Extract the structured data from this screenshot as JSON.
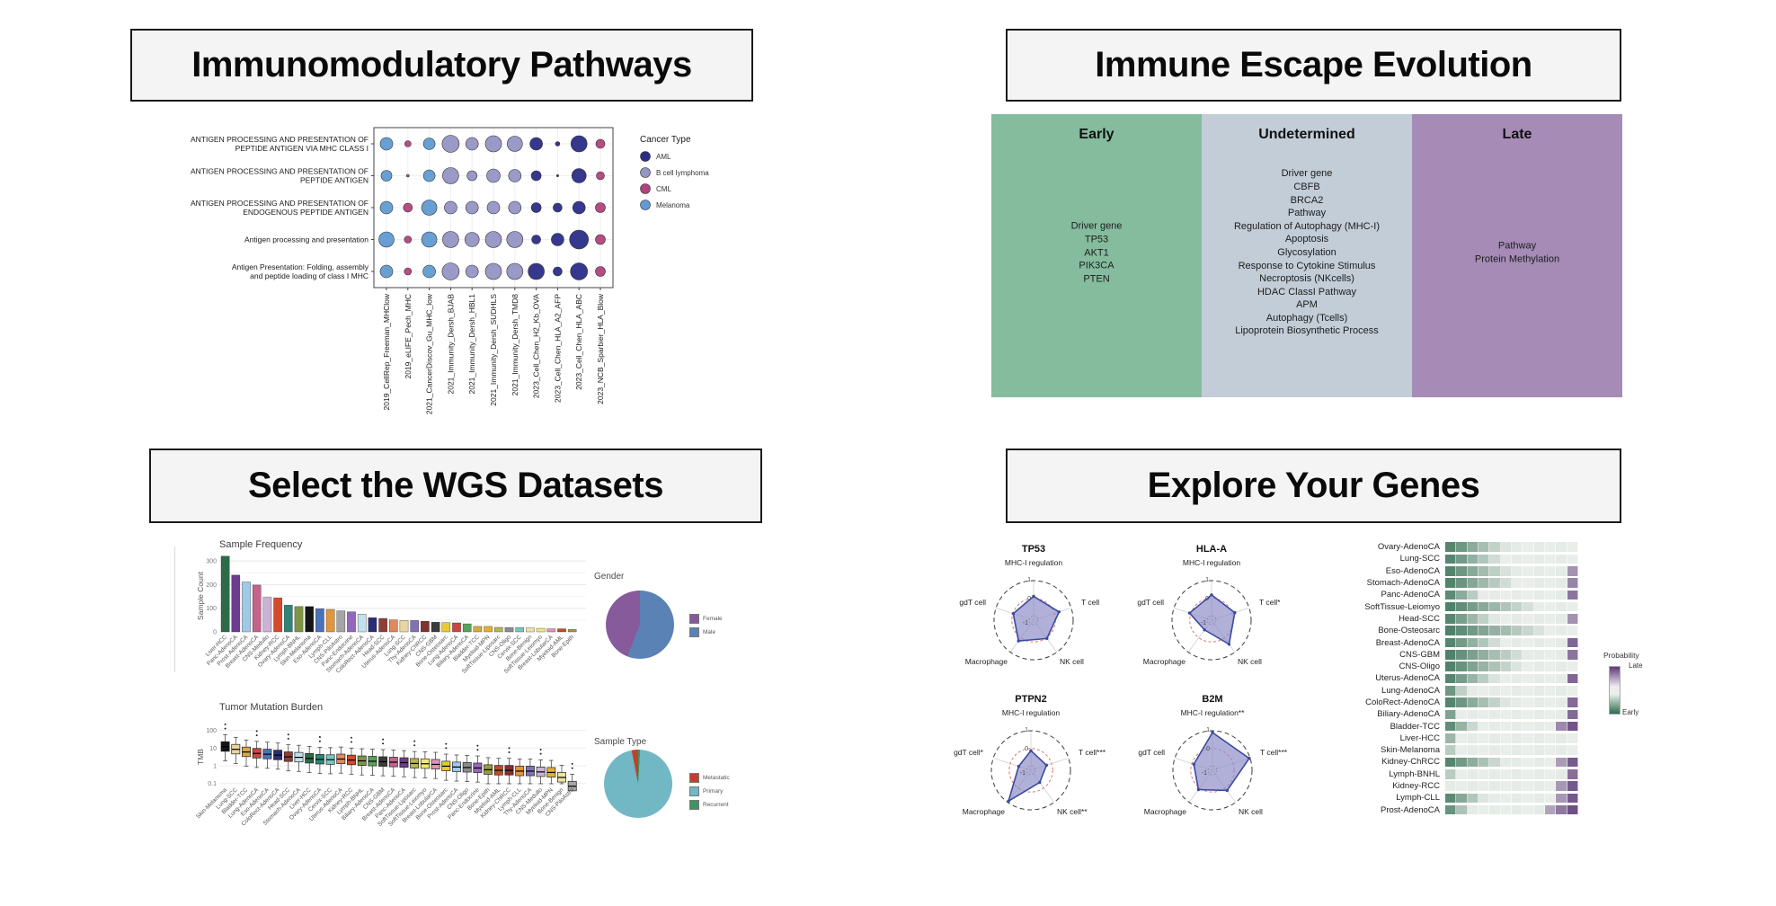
{
  "panels": {
    "immunomodulatory": {
      "title": "Immunomodulatory Pathways"
    },
    "immune_escape": {
      "title": "Immune Escape Evolution"
    },
    "wgs": {
      "title": "Select the WGS Datasets"
    },
    "explore": {
      "title": "Explore Your Genes"
    }
  },
  "immune_escape_columns": [
    {
      "label": "Early",
      "color": "#85bc9e",
      "items": [
        "Driver gene",
        "TP53",
        "AKT1",
        "PIK3CA",
        "PTEN"
      ]
    },
    {
      "label": "Undetermined",
      "color": "#c2cdd8",
      "items": [
        "Driver gene",
        "CBFB",
        "BRCA2",
        "Pathway",
        "Regulation of Autophagy (MHC-I)",
        "Apoptosis",
        "Glycosylation",
        "Response to Cytokine Stimulus",
        "Necroptosis (NKcells)",
        "HDAC ClassI Pathway",
        "APM",
        "Autophagy (Tcells)",
        "Lipoprotein Biosynthetic Process"
      ]
    },
    {
      "label": "Late",
      "color": "#a68bb7",
      "items": [
        "Pathway",
        "Protein Methylation"
      ]
    }
  ],
  "chart_data": [
    {
      "id": "pathway_dotplot",
      "type": "scatter",
      "rows": [
        [
          "ANTIGEN PROCESSING AND PRESENTATION OF",
          "PEPTIDE ANTIGEN VIA MHC CLASS I"
        ],
        [
          "ANTIGEN PROCESSING AND PRESENTATION OF",
          "PEPTIDE ANTIGEN"
        ],
        [
          "ANTIGEN PROCESSING AND PRESENTATION OF",
          "ENDOGENOUS PEPTIDE ANTIGEN"
        ],
        [
          "Antigen processing and presentation"
        ],
        [
          "Antigen Presentation: Folding, assembly",
          "and peptide loading of class I MHC"
        ]
      ],
      "columns": [
        "2019_CellRep_Freeman_MHClow",
        "2019_eLIFE_Pech_MHC",
        "2021_CancerDiscov_Gu_MHC_low",
        "2021_Immunity_Dersh_BJAB",
        "2021_Immunity_Dersh_HBL1",
        "2021_Immunity_Dersh_SUDHLS",
        "2021_Immunity_Dersh_TMD8",
        "2023_Cell_Chen_H2_Kb_OVA",
        "2023_Cell_Chen_HLA_A2_AFP",
        "2023_Cell_Chen_HLA_ABC",
        "2023_NCB_Sparbier_HLA_Blow"
      ],
      "column_cancer_type": [
        "Melanoma",
        "CML",
        "Melanoma",
        "B cell lymphoma",
        "B cell lymphoma",
        "B cell lymphoma",
        "B cell lymphoma",
        "AML",
        "AML",
        "AML",
        "CML"
      ],
      "dot_sizes": [
        [
          7,
          3.5,
          6.5,
          9.5,
          7,
          9,
          8.5,
          7,
          2.5,
          9,
          5
        ],
        [
          6,
          1.5,
          6.5,
          9,
          5.5,
          7.5,
          7,
          5.5,
          1.2,
          8,
          4.5
        ],
        [
          7,
          5,
          8.5,
          7,
          7,
          7,
          7,
          5.5,
          5,
          7,
          5.5
        ],
        [
          8.5,
          4,
          8.5,
          9,
          8,
          9,
          9,
          5,
          7,
          10.5,
          5.5
        ],
        [
          7,
          4,
          7,
          9.5,
          7,
          9,
          9,
          9,
          5,
          9.5,
          5.5
        ]
      ],
      "legend": {
        "title": "Cancer Type",
        "entries": [
          {
            "label": "AML",
            "color": "#2a2d87"
          },
          {
            "label": "B cell lymphoma",
            "color": "#9693c5"
          },
          {
            "label": "CML",
            "color": "#b2437b"
          },
          {
            "label": "Melanoma",
            "color": "#609bd2"
          }
        ]
      }
    },
    {
      "id": "sample_frequency",
      "type": "bar",
      "title": "Sample Frequency",
      "ylabel": "Sample Count",
      "yticks": [
        0,
        100,
        200,
        300
      ],
      "ylim": [
        0,
        330
      ],
      "categories": [
        "Liver-HCC",
        "Panc-AdenoCA",
        "Prost-AdenoCA",
        "Breast-AdenoCA",
        "CNS-Medullo",
        "Kidney-RCC",
        "Ovary-AdenoCA",
        "Lymph-BNHL",
        "Skin-Melanoma",
        "Eso-AdenoCA",
        "Lymph-CLL",
        "CNS-PiloAstro",
        "Panc-Endocrine",
        "Stomach-AdenoCA",
        "ColoRect-AdenoCA",
        "Head-SCC",
        "Uterus-AdenoCA",
        "Lung-SCC",
        "Thy-AdenoCA",
        "Kidney-ChRCC",
        "CNS-GBM",
        "Bone-Osteosarc",
        "Lung-AdenoCA",
        "Biliary-AdenoCA",
        "Bladder-TCC",
        "Myeloid-MPN",
        "SoftTissue-Liposarc",
        "CNS-Oligo",
        "Cervix-SCC",
        "Bone-Benign",
        "SoftTissue-Leiomyo",
        "Breast-LobularCA",
        "Myeloid-AML",
        "Bone-Epith"
      ],
      "values": [
        320,
        240,
        211,
        198,
        146,
        144,
        113,
        107,
        107,
        98,
        95,
        89,
        85,
        75,
        60,
        57,
        51,
        48,
        48,
        45,
        41,
        39,
        38,
        34,
        23,
        23,
        19,
        18,
        18,
        16,
        15,
        13,
        13,
        10
      ],
      "colors": [
        "#2c6b46",
        "#6a3d8f",
        "#9ecae9",
        "#c4638c",
        "#cbb2d6",
        "#d6492c",
        "#2e8577",
        "#7d9545",
        "#141414",
        "#4a72b8",
        "#e2953d",
        "#a5a5a5",
        "#9467bd",
        "#c3e1ec",
        "#2b2d75",
        "#8f3f36",
        "#e0895e",
        "#ead5a0",
        "#8072b5",
        "#823030",
        "#3b3b3b",
        "#e8c92f",
        "#cc4545",
        "#59a257",
        "#d8a843",
        "#e3b130",
        "#b8b457",
        "#8c8c8c",
        "#76c7c0",
        "#efe3a2",
        "#f2e87e",
        "#e391bb",
        "#bb4f24",
        "#9b9b3c"
      ]
    },
    {
      "id": "gender_pie",
      "type": "pie",
      "title": "Gender",
      "from_deg": 0,
      "slices_draw": [
        {
          "label": "Male",
          "value": 56,
          "color": "#5b82b5"
        },
        {
          "label": "Female",
          "value": 44,
          "color": "#875a9b"
        }
      ],
      "legend_order": [
        "Female",
        "Male"
      ]
    },
    {
      "id": "tmb_boxplot",
      "type": "boxplot",
      "title": "Tumor Mutation Burden",
      "ylabel": "TMB",
      "yticks": [
        0.1,
        1,
        10,
        100
      ],
      "boxes": [
        {
          "label": "Skin-Melanoma",
          "median": 12,
          "color": "#141414"
        },
        {
          "label": "Lung-SCC",
          "median": 8.5,
          "color": "#ead5a0"
        },
        {
          "label": "Bladder-TCC",
          "median": 6,
          "color": "#d8a843"
        },
        {
          "label": "Lung-AdenoCA",
          "median": 5,
          "color": "#cc4545"
        },
        {
          "label": "Eso-AdenoCA",
          "median": 4.5,
          "color": "#4a72b8"
        },
        {
          "label": "ColoRect-AdenoCA",
          "median": 4,
          "color": "#2b2d75"
        },
        {
          "label": "Head-SCC",
          "median": 3.2,
          "color": "#8f3f36"
        },
        {
          "label": "Stomach-AdenoCA",
          "median": 3,
          "color": "#c3e1ec"
        },
        {
          "label": "Liver-HCC",
          "median": 2.6,
          "color": "#2c6b46"
        },
        {
          "label": "Ovary-AdenoCA",
          "median": 2.3,
          "color": "#2e8577"
        },
        {
          "label": "Cervix-SCC",
          "median": 2.2,
          "color": "#76c7c0"
        },
        {
          "label": "Uterus-AdenoCA",
          "median": 2.4,
          "color": "#e0895e"
        },
        {
          "label": "Kidney-RCC",
          "median": 2.1,
          "color": "#d6492c"
        },
        {
          "label": "Lymph-BNHL",
          "median": 1.9,
          "color": "#7d9545"
        },
        {
          "label": "Biliary-AdenoCA",
          "median": 1.8,
          "color": "#59a257"
        },
        {
          "label": "CNS-GBM",
          "median": 1.7,
          "color": "#3b3b3b"
        },
        {
          "label": "Breast-AdenoCA",
          "median": 1.6,
          "color": "#c4638c"
        },
        {
          "label": "Panc-AdenoCA",
          "median": 1.5,
          "color": "#6a3d8f"
        },
        {
          "label": "SoftTissue-Liposarc",
          "median": 1.35,
          "color": "#b8b457"
        },
        {
          "label": "SoftTissue-Leiomyo",
          "median": 1.3,
          "color": "#f2e87e"
        },
        {
          "label": "Breast-LobularCA",
          "median": 1.2,
          "color": "#e391bb"
        },
        {
          "label": "Bone-Osteosarc",
          "median": 0.95,
          "color": "#e8c92f"
        },
        {
          "label": "Prost-AdenoCA",
          "median": 0.85,
          "color": "#9ecae9"
        },
        {
          "label": "CNS-Oligo",
          "median": 0.8,
          "color": "#8c8c8c"
        },
        {
          "label": "Panc-Endocrine",
          "median": 0.75,
          "color": "#9467bd"
        },
        {
          "label": "Bone-Epith",
          "median": 0.6,
          "color": "#9b9b3c"
        },
        {
          "label": "Myeloid-AML",
          "median": 0.55,
          "color": "#bb4f24"
        },
        {
          "label": "Kidney-ChRCC",
          "median": 0.55,
          "color": "#823030"
        },
        {
          "label": "Lymph-CLL",
          "median": 0.5,
          "color": "#e2953d"
        },
        {
          "label": "Thy-AdenoCA",
          "median": 0.5,
          "color": "#8072b5"
        },
        {
          "label": "CNS-Medullo",
          "median": 0.45,
          "color": "#cbb2d6"
        },
        {
          "label": "Myeloid-MPN",
          "median": 0.42,
          "color": "#e3b130"
        },
        {
          "label": "Bone-Benign",
          "median": 0.22,
          "color": "#efe3a2"
        },
        {
          "label": "CNS-PiloAstro",
          "median": 0.07,
          "color": "#a5a5a5"
        }
      ]
    },
    {
      "id": "sample_type_pie",
      "type": "pie",
      "title": "Sample Type",
      "from_deg": 349,
      "slices_draw": [
        {
          "label": "Metastatic",
          "value": 3,
          "color": "#c0402f"
        },
        {
          "label": "Recurrent",
          "value": 1,
          "color": "#3f9361"
        },
        {
          "label": "Primary",
          "value": 96,
          "color": "#72b7c4"
        }
      ],
      "legend_order": [
        "Metastatic",
        "Primary",
        "Recurrent"
      ]
    },
    {
      "id": "gene_radars",
      "type": "radar",
      "scale_labels": [
        "1",
        "0",
        "-1"
      ],
      "fill": "#8e8ec9",
      "stroke": "#3a4a9f",
      "zero_color": "#dd6666",
      "charts": [
        {
          "title": "TP53",
          "axes": [
            "MHC-I regulation",
            "T cell",
            "NK cell",
            "Macrophage",
            "gdT cell"
          ],
          "values": [
            0.12,
            0.28,
            0.05,
            0.22,
            -0.02
          ]
        },
        {
          "title": "HLA-A",
          "axes": [
            "MHC-I regulation",
            "T cell*",
            "NK cell",
            "Macrophage",
            "gdT cell"
          ],
          "values": [
            0.2,
            0.15,
            0.45,
            -0.55,
            0.08
          ]
        },
        {
          "title": "PTPN2",
          "axes": [
            "MHC-I regulation",
            "T cell***",
            "NK cell**",
            "Macrophage",
            "gdT cell*"
          ],
          "values": [
            -0.12,
            -0.3,
            -0.38,
            0.92,
            -0.5
          ]
        },
        {
          "title": "B2M",
          "axes": [
            "MHC-I regulation**",
            "T cell***",
            "NK cell",
            "Macrophage",
            "gdT cell"
          ],
          "values": [
            0.9,
            0.95,
            0.18,
            0.12,
            -0.12
          ]
        }
      ]
    },
    {
      "id": "probability_heatmap",
      "type": "heatmap",
      "legend": {
        "title": "Probability",
        "top_label": "Late",
        "bottom_label": "Early"
      },
      "color_early": "#2f6b4f",
      "color_mid": "#ecefec",
      "color_late": "#5d3a78",
      "rows": [
        {
          "label": "Ovary-AdenoCA",
          "green": 0.5,
          "purple": 0.02
        },
        {
          "label": "Lung-SCC",
          "green": 0.45,
          "purple": 0.02
        },
        {
          "label": "Eso-AdenoCA",
          "green": 0.52,
          "purple": 0.06
        },
        {
          "label": "Stomach-AdenoCA",
          "green": 0.55,
          "purple": 0.07
        },
        {
          "label": "Panc-AdenoCA",
          "green": 0.3,
          "purple": 0.09
        },
        {
          "label": "SoftTissue-Leiomyo",
          "green": 0.72,
          "purple": 0.02
        },
        {
          "label": "Head-SCC",
          "green": 0.4,
          "purple": 0.06
        },
        {
          "label": "Bone-Osteosarc",
          "green": 0.8,
          "purple": 0.02
        },
        {
          "label": "Breast-AdenoCA",
          "green": 0.45,
          "purple": 0.12
        },
        {
          "label": "CNS-GBM",
          "green": 0.65,
          "purple": 0.09
        },
        {
          "label": "CNS-Oligo",
          "green": 0.6,
          "purple": 0.03
        },
        {
          "label": "Uterus-AdenoCA",
          "green": 0.42,
          "purple": 0.12
        },
        {
          "label": "Lung-AdenoCA",
          "green": 0.17,
          "purple": 0.03
        },
        {
          "label": "ColoRect-AdenoCA",
          "green": 0.5,
          "purple": 0.11
        },
        {
          "label": "Biliary-AdenoCA",
          "green": 0.12,
          "purple": 0.11
        },
        {
          "label": "Bladder-TCC",
          "green": 0.26,
          "purple": 0.2
        },
        {
          "label": "Liver-HCC",
          "green": 0.08,
          "purple": 0.03
        },
        {
          "label": "Skin-Melanoma",
          "green": 0.06,
          "purple": 0.01
        },
        {
          "label": "Kidney-ChRCC",
          "green": 0.48,
          "purple": 0.16
        },
        {
          "label": "Lymph-BNHL",
          "green": 0.06,
          "purple": 0.1
        },
        {
          "label": "Kidney-RCC",
          "green": 0.04,
          "purple": 0.17
        },
        {
          "label": "Lymph-CLL",
          "green": 0.32,
          "purple": 0.17
        },
        {
          "label": "Prost-AdenoCA",
          "green": 0.2,
          "purple": 0.25
        }
      ]
    }
  ]
}
